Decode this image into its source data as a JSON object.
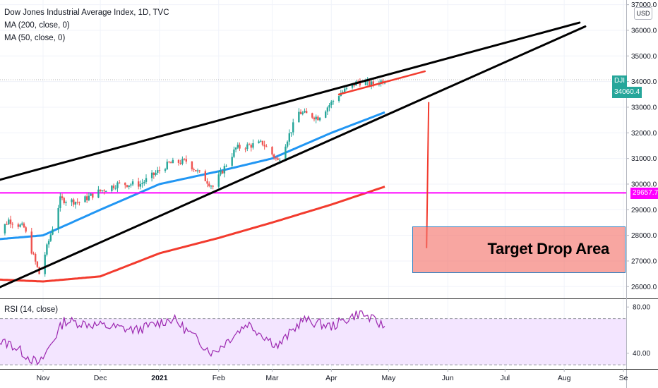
{
  "legend": {
    "title": "Dow Jones Industrial Average Index, 1D, TVC",
    "ma200": "MA (200, close, 0)",
    "ma50": "MA (50, close, 0)",
    "rsi": "RSI (14, close)"
  },
  "currency": "USD",
  "last_price": {
    "symbol": "DJI",
    "value": "34060.4"
  },
  "level_tag": "29657.7",
  "annotation": "Target Drop Area",
  "colors": {
    "up": "#26a69a",
    "down": "#ef5350",
    "ma50": "#2196f3",
    "ma200": "#f23b2e",
    "level": "#ff00ff",
    "rsi": "#9c27b0",
    "rsi_band": "#f3e5ff",
    "target": "#f47067",
    "trend": "#000000",
    "arrow": "#f23b2e"
  },
  "chart_data": {
    "type": "candlestick",
    "price_axis": {
      "ticks": [
        "26000.0",
        "27000.0",
        "28000.0",
        "29000.0",
        "30000.0",
        "31000.0",
        "32000.0",
        "33000.0",
        "34000.0",
        "35000.0",
        "36000.0",
        "37000.0"
      ],
      "ylim": [
        25650,
        37100
      ]
    },
    "rsi_axis": {
      "ticks": [
        "40.00",
        "80.00"
      ],
      "ylim": [
        27,
        85
      ],
      "bands": [
        30,
        70
      ]
    },
    "x_axis": {
      "ticks": [
        {
          "label": "Nov",
          "date": "2020-11-01"
        },
        {
          "label": "Dec",
          "date": "2020-12-01"
        },
        {
          "label": "2021",
          "date": "2021-01-01"
        },
        {
          "label": "Feb",
          "date": "2021-02-01"
        },
        {
          "label": "Mar",
          "date": "2021-03-01"
        },
        {
          "label": "Apr",
          "date": "2021-04-01"
        },
        {
          "label": "May",
          "date": "2021-05-01"
        },
        {
          "label": "Jun",
          "date": "2021-06-01"
        },
        {
          "label": "Jul",
          "date": "2021-07-01"
        },
        {
          "label": "Aug",
          "date": "2021-08-01"
        },
        {
          "label": "Se",
          "date": "2021-09-01"
        }
      ]
    },
    "price_series": [
      {
        "date": "2020-10-06",
        "close": 27800
      },
      {
        "date": "2020-10-14",
        "close": 28600
      },
      {
        "date": "2020-10-22",
        "close": 28300
      },
      {
        "date": "2020-10-30",
        "close": 26500
      },
      {
        "date": "2020-11-06",
        "close": 28300
      },
      {
        "date": "2020-11-10",
        "close": 29400
      },
      {
        "date": "2020-11-20",
        "close": 29300
      },
      {
        "date": "2020-11-30",
        "close": 29700
      },
      {
        "date": "2020-12-10",
        "close": 30000
      },
      {
        "date": "2020-12-22",
        "close": 30000
      },
      {
        "date": "2021-01-06",
        "close": 30800
      },
      {
        "date": "2021-01-15",
        "close": 30900
      },
      {
        "date": "2021-01-29",
        "close": 29900
      },
      {
        "date": "2021-02-10",
        "close": 31400
      },
      {
        "date": "2021-02-24",
        "close": 31600
      },
      {
        "date": "2021-03-04",
        "close": 30900
      },
      {
        "date": "2021-03-15",
        "close": 32800
      },
      {
        "date": "2021-03-25",
        "close": 32600
      },
      {
        "date": "2021-04-05",
        "close": 33500
      },
      {
        "date": "2021-04-15",
        "close": 34000
      },
      {
        "date": "2021-04-22",
        "close": 33900
      },
      {
        "date": "2021-04-29",
        "close": 34060
      }
    ],
    "ma50_series": [
      {
        "date": "2020-10-01",
        "value": 27800
      },
      {
        "date": "2020-11-01",
        "value": 28000
      },
      {
        "date": "2020-12-01",
        "value": 29000
      },
      {
        "date": "2021-01-01",
        "value": 30000
      },
      {
        "date": "2021-02-01",
        "value": 30500
      },
      {
        "date": "2021-03-01",
        "value": 31000
      },
      {
        "date": "2021-04-01",
        "value": 32000
      },
      {
        "date": "2021-04-29",
        "value": 32800
      }
    ],
    "ma200_series": [
      {
        "date": "2020-10-01",
        "value": 26300
      },
      {
        "date": "2020-11-01",
        "value": 26200
      },
      {
        "date": "2020-12-01",
        "value": 26400
      },
      {
        "date": "2021-01-01",
        "value": 27300
      },
      {
        "date": "2021-02-01",
        "value": 27900
      },
      {
        "date": "2021-03-01",
        "value": 28500
      },
      {
        "date": "2021-04-01",
        "value": 29200
      },
      {
        "date": "2021-04-29",
        "value": 29900
      }
    ],
    "rsi_series": [
      {
        "date": "2020-10-01",
        "value": 52
      },
      {
        "date": "2020-10-15",
        "value": 48
      },
      {
        "date": "2020-10-30",
        "value": 30
      },
      {
        "date": "2020-11-12",
        "value": 68
      },
      {
        "date": "2020-12-01",
        "value": 64
      },
      {
        "date": "2020-12-20",
        "value": 60
      },
      {
        "date": "2021-01-08",
        "value": 70
      },
      {
        "date": "2021-01-29",
        "value": 40
      },
      {
        "date": "2021-02-16",
        "value": 66
      },
      {
        "date": "2021-03-04",
        "value": 46
      },
      {
        "date": "2021-03-17",
        "value": 69
      },
      {
        "date": "2021-04-01",
        "value": 63
      },
      {
        "date": "2021-04-16",
        "value": 75
      },
      {
        "date": "2021-04-29",
        "value": 63
      }
    ],
    "horizontal_level": 29657.7,
    "trendlines": [
      {
        "name": "upper-wedge-line",
        "from": {
          "date": "2020-10-01",
          "value": 30000
        },
        "to": {
          "date": "2021-08-09",
          "value": 36300
        }
      },
      {
        "name": "lower-wedge-line",
        "from": {
          "date": "2020-10-01",
          "value": 25700
        },
        "to": {
          "date": "2021-08-12",
          "value": 36150
        }
      },
      {
        "name": "red-channel-line",
        "from": {
          "date": "2021-04-05",
          "value": 33500
        },
        "to": {
          "date": "2021-05-20",
          "value": 34400
        }
      }
    ],
    "drop_arrow": {
      "from": {
        "date": "2021-05-22",
        "value": 33200
      },
      "to": {
        "date": "2021-05-22",
        "value": 27500
      }
    },
    "target_zone": {
      "from_date": "2021-05-20",
      "to_date": "2021-09-01",
      "low": 26500,
      "high": 28300
    }
  }
}
